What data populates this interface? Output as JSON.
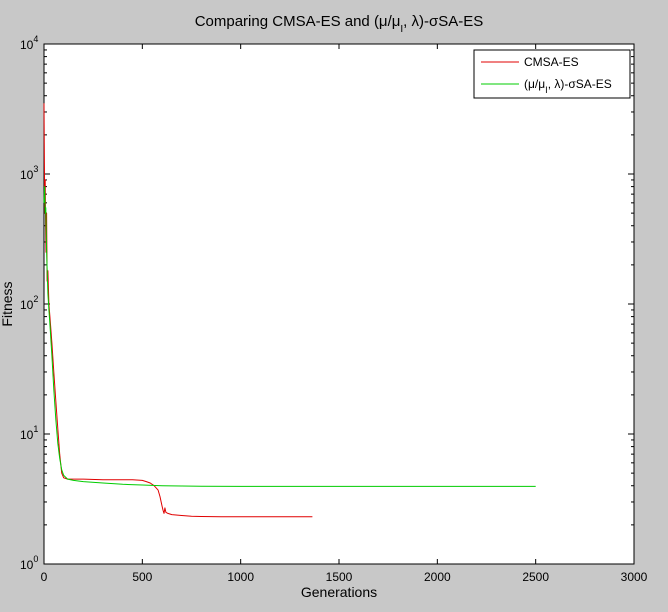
{
  "chart_data": {
    "type": "line",
    "title": "Comparing CMSA-ES and (μ/μ_I, λ)-σSA-ES",
    "xlabel": "Generations",
    "ylabel": "Fitness",
    "xlim": [
      0,
      3000
    ],
    "ylim": [
      1,
      10000
    ],
    "yscale": "log",
    "grid": false,
    "legend_position": "top-right",
    "x_ticks": [
      0,
      500,
      1000,
      1500,
      2000,
      2500,
      3000
    ],
    "x_tick_labels": [
      "0",
      "500",
      "1000",
      "1500",
      "2000",
      "2500",
      "3000"
    ],
    "y_ticks": [
      1,
      10,
      100,
      1000,
      10000
    ],
    "y_tick_labels": [
      {
        "base": "10",
        "exp": "0"
      },
      {
        "base": "10",
        "exp": "1"
      },
      {
        "base": "10",
        "exp": "2"
      },
      {
        "base": "10",
        "exp": "3"
      },
      {
        "base": "10",
        "exp": "4"
      }
    ],
    "series": [
      {
        "name": "CMSA-ES",
        "color": "#e00000",
        "x": [
          0,
          2,
          4,
          6,
          8,
          10,
          13,
          16,
          20,
          25,
          30,
          40,
          50,
          60,
          70,
          80,
          90,
          100,
          120,
          150,
          200,
          300,
          400,
          450,
          480,
          500,
          520,
          540,
          560,
          580,
          590,
          600,
          605,
          610,
          615,
          620,
          630,
          650,
          700,
          750,
          800,
          900,
          1000,
          1100,
          1200,
          1300,
          1365
        ],
        "y": [
          3500,
          1200,
          500,
          900,
          400,
          250,
          500,
          150,
          180,
          100,
          80,
          50,
          30,
          18,
          11,
          7,
          5,
          4.6,
          4.5,
          4.5,
          4.5,
          4.45,
          4.45,
          4.45,
          4.42,
          4.4,
          4.3,
          4.2,
          4.0,
          3.7,
          3.3,
          2.8,
          2.6,
          2.45,
          2.7,
          2.5,
          2.45,
          2.4,
          2.36,
          2.33,
          2.32,
          2.31,
          2.31,
          2.31,
          2.31,
          2.31,
          2.31
        ]
      },
      {
        "name": "(μ/μ_I, λ)-σSA-ES",
        "color": "#00cc00",
        "x": [
          0,
          3,
          6,
          9,
          12,
          15,
          20,
          25,
          30,
          40,
          50,
          60,
          70,
          80,
          90,
          100,
          120,
          150,
          200,
          300,
          400,
          500,
          600,
          700,
          800,
          1000,
          1200,
          1500,
          2000,
          2500
        ],
        "y": [
          600,
          800,
          500,
          550,
          300,
          200,
          120,
          90,
          70,
          40,
          22,
          13,
          8.5,
          6.5,
          5.3,
          4.8,
          4.5,
          4.4,
          4.3,
          4.2,
          4.1,
          4.05,
          4.0,
          3.98,
          3.96,
          3.95,
          3.95,
          3.95,
          3.95,
          3.95
        ]
      }
    ]
  }
}
